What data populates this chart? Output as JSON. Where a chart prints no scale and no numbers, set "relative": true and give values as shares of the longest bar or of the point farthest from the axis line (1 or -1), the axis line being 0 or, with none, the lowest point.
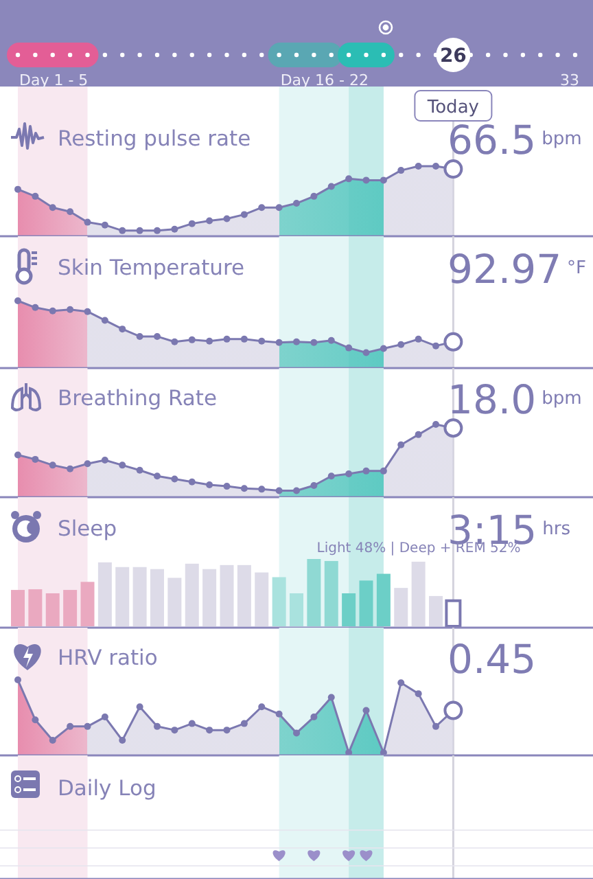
{
  "chart_data": [
    {
      "type": "other",
      "annotations": [
        "Day 1 - 5",
        "Day 16 - 22",
        "26",
        "33",
        "Today"
      ]
    },
    {
      "type": "area",
      "title": "Resting pulse rate",
      "annotations": [
        "66.5$^{bpm}$"
      ],
      "relative": true,
      "marker": "circle",
      "color": "#7b78b0",
      "categories": [
        null,
        null,
        null,
        null,
        null,
        null,
        null,
        null,
        null,
        null,
        null,
        null,
        null,
        null,
        null,
        null,
        null,
        null,
        null,
        null,
        null,
        null,
        null,
        null,
        null,
        null
      ],
      "values": [
        0.67,
        0.57,
        0.41,
        0.35,
        0.2,
        0.16,
        0.08,
        0.08,
        0.08,
        0.1,
        0.18,
        0.22,
        0.25,
        0.31,
        0.41,
        0.41,
        0.47,
        0.57,
        0.71,
        0.82,
        0.8,
        0.8,
        0.94,
        1,
        1,
        0.96
      ]
    },
    {
      "type": "area",
      "title": "Skin Temperature",
      "annotations": [
        "92.97$^{°F}$"
      ],
      "relative": true,
      "marker": "circle",
      "color": "#7b78b0",
      "categories": [
        null,
        null,
        null,
        null,
        null,
        null,
        null,
        null,
        null,
        null,
        null,
        null,
        null,
        null,
        null,
        null,
        null,
        null,
        null,
        null,
        null,
        null,
        null,
        null,
        null,
        null
      ],
      "values": [
        1,
        0.9,
        0.85,
        0.87,
        0.84,
        0.71,
        0.58,
        0.47,
        0.47,
        0.39,
        0.42,
        0.4,
        0.43,
        0.43,
        0.4,
        0.38,
        0.39,
        0.38,
        0.41,
        0.3,
        0.23,
        0.29,
        0.35,
        0.43,
        0.33,
        0.39
      ]
    },
    {
      "type": "area",
      "title": "Breathing Rate",
      "annotations": [
        "18.0$^{bpm}$"
      ],
      "relative": true,
      "marker": "circle",
      "color": "#7b78b0",
      "categories": [
        null,
        null,
        null,
        null,
        null,
        null,
        null,
        null,
        null,
        null,
        null,
        null,
        null,
        null,
        null,
        null,
        null,
        null,
        null,
        null,
        null,
        null,
        null,
        null,
        null,
        null
      ],
      "values": [
        0.58,
        0.52,
        0.44,
        0.39,
        0.46,
        0.51,
        0.44,
        0.37,
        0.29,
        0.25,
        0.21,
        0.17,
        0.15,
        0.12,
        0.11,
        0.09,
        0.09,
        0.16,
        0.29,
        0.32,
        0.36,
        0.36,
        0.72,
        0.86,
        1,
        0.95
      ]
    },
    {
      "type": "bar",
      "title": "Sleep",
      "annotations": [
        "3:15$^{hrs}$",
        "Light 48% | Deep + REM 52%"
      ],
      "relative": true,
      "categories": [
        null,
        null,
        null,
        null,
        null,
        null,
        null,
        null,
        null,
        null,
        null,
        null,
        null,
        null,
        null,
        null,
        null,
        null,
        null,
        null,
        null,
        null,
        null,
        null,
        null,
        null
      ],
      "values": [
        0.54,
        0.55,
        0.49,
        0.54,
        0.66,
        0.95,
        0.88,
        0.88,
        0.85,
        0.72,
        0.93,
        0.85,
        0.91,
        0.91,
        0.8,
        0.73,
        0.49,
        1,
        0.97,
        0.49,
        0.68,
        0.78,
        0.57,
        0.96,
        0.45,
        0.38
      ],
      "colors": [
        "#eaa9c0",
        "#eaa9c0",
        "#eaa9c0",
        "#eaa9c0",
        "#eaa9c0",
        "#dddbe8",
        "#dddbe8",
        "#dddbe8",
        "#dddbe8",
        "#dddbe8",
        "#dddbe8",
        "#dddbe8",
        "#dddbe8",
        "#dddbe8",
        "#dddbe8",
        "#a9e2de",
        "#a9e2de",
        "#8fd9d3",
        "#8fd9d3",
        "#6ccfc7",
        "#6ccfc7",
        "#6ccfc7",
        "#dddbe8",
        "#dddbe8",
        "#dddbe8",
        "#ffffff"
      ]
    },
    {
      "type": "area",
      "title": "HRV ratio",
      "annotations": [
        "0.45"
      ],
      "relative": true,
      "marker": "circle",
      "color": "#7b78b0",
      "categories": [
        null,
        null,
        null,
        null,
        null,
        null,
        null,
        null,
        null,
        null,
        null,
        null,
        null,
        null,
        null,
        null,
        null,
        null,
        null,
        null,
        null,
        null,
        null,
        null,
        null,
        null
      ],
      "values": [
        1,
        0.45,
        0.17,
        0.36,
        0.36,
        0.49,
        0.17,
        0.63,
        0.36,
        0.31,
        0.4,
        0.31,
        0.31,
        0.4,
        0.63,
        0.53,
        0.27,
        0.49,
        0.76,
        0,
        0.58,
        0,
        0.96,
        0.81,
        0.36,
        0.58
      ]
    },
    {
      "type": "other",
      "title": "Daily Log"
    }
  ]
}
